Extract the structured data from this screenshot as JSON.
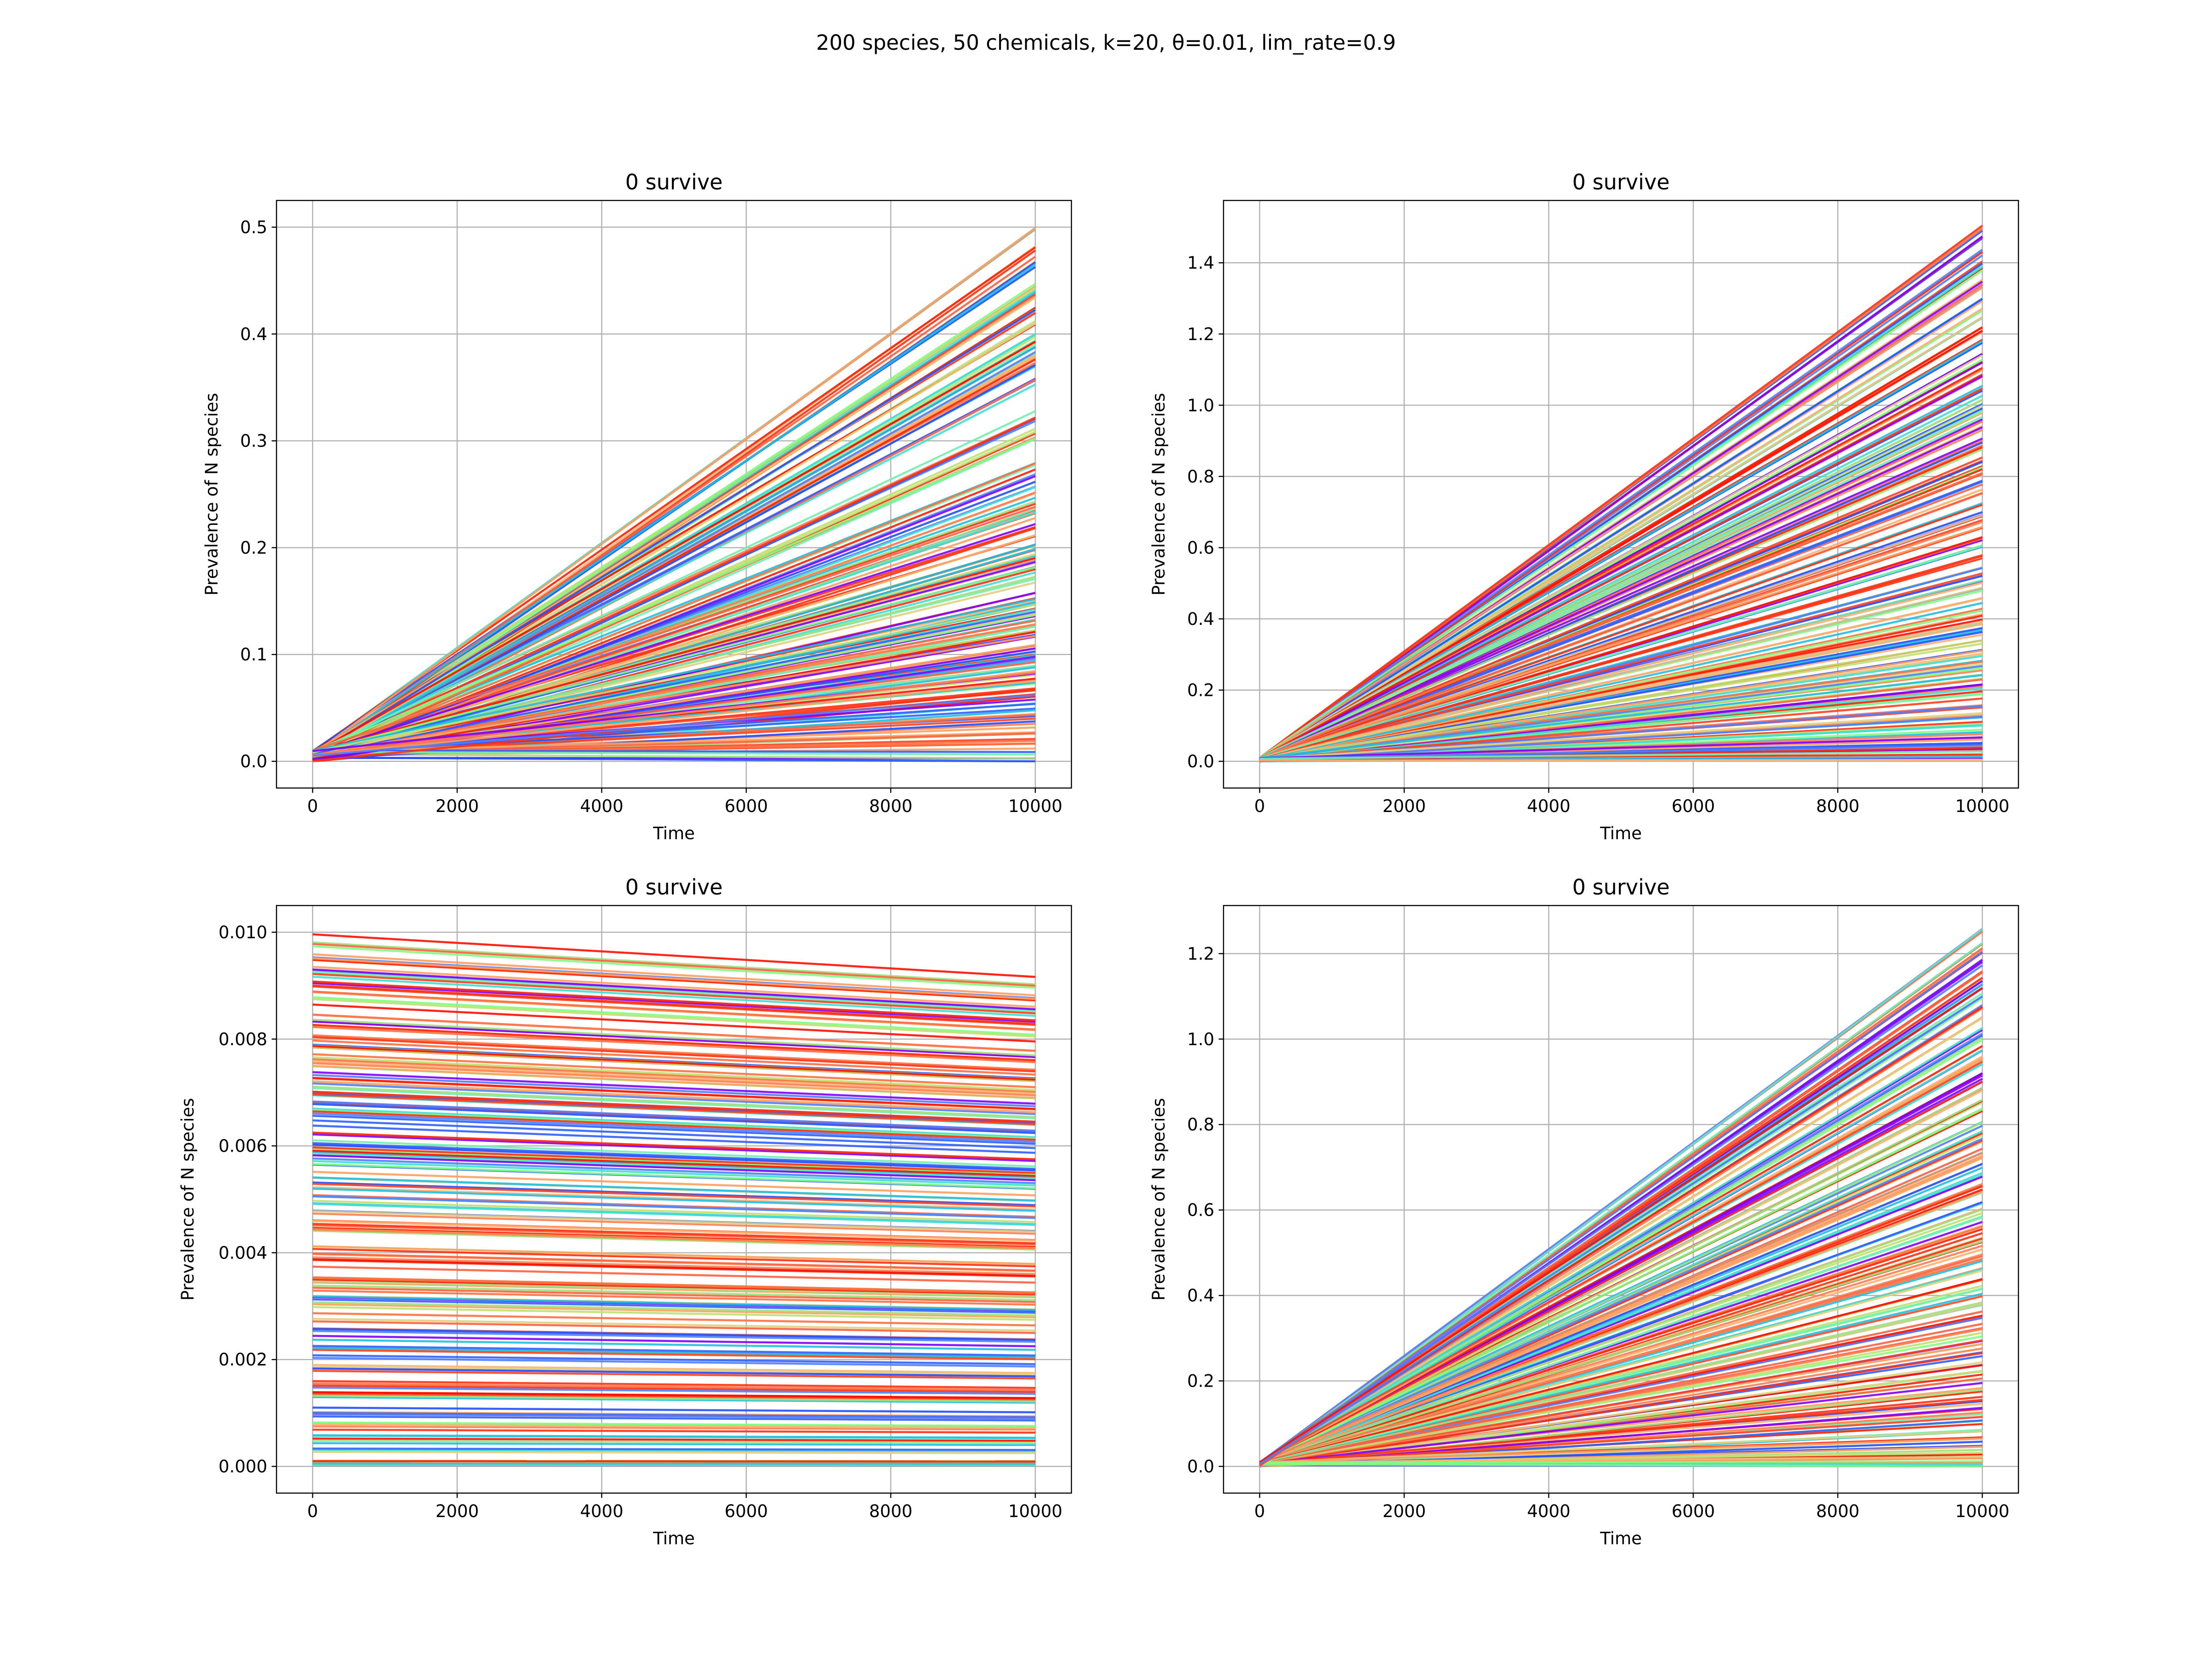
{
  "figure": {
    "suptitle": "200 species, 50 chemicals, k=20, θ=0.01, lim_rate=0.9"
  },
  "chart_data": [
    {
      "type": "line",
      "title": "0 survive",
      "xlabel": "Time",
      "ylabel": "Prevalence of N species",
      "xlim": [
        -500,
        10500
      ],
      "ylim": [
        -0.025,
        0.525
      ],
      "xticks": [
        0,
        2000,
        4000,
        6000,
        8000,
        10000
      ],
      "xtick_labels": [
        "0",
        "2000",
        "4000",
        "6000",
        "8000",
        "10000"
      ],
      "yticks": [
        0.0,
        0.1,
        0.2,
        0.3,
        0.4,
        0.5
      ],
      "ytick_labels": [
        "0.0",
        "0.1",
        "0.2",
        "0.3",
        "0.4",
        "0.5"
      ],
      "grid": true,
      "n_series": 200,
      "colormap": "rainbow",
      "series_shape": "straight lines from t=0 to t=10000",
      "start_range": [
        0.0,
        0.01
      ],
      "end_samples": [
        0.5,
        0.48,
        0.47,
        0.465,
        0.445,
        0.44,
        0.435,
        0.425,
        0.42,
        0.41,
        0.4,
        0.395,
        0.39,
        0.385,
        0.38,
        0.375,
        0.37,
        0.36,
        0.355,
        0.325,
        0.32,
        0.31,
        0.3,
        0.28,
        0.27,
        0.26,
        0.25,
        0.24,
        0.235,
        0.23,
        0.22,
        0.21,
        0.205,
        0.2,
        0.195,
        0.19,
        0.185,
        0.18,
        0.17,
        0.155,
        0.15,
        0.145,
        0.14,
        0.135,
        0.13,
        0.125,
        0.12,
        0.115,
        0.11,
        0.105,
        0.1,
        0.095,
        0.09,
        0.085,
        0.08,
        0.075,
        0.07,
        0.065,
        0.06,
        0.055,
        0.05,
        0.045,
        0.04,
        0.035,
        0.03,
        0.025,
        0.02,
        0.015,
        0.01,
        0.005,
        0.002
      ],
      "colors": [
        "#80ff80",
        "#40e0d0",
        "#ff2000",
        "#3060ff",
        "#ff4020",
        "#ffb070",
        "#a0e080",
        "#ff6040",
        "#8000ff",
        "#20c0e0",
        "#e0d080",
        "#ff3010",
        "#5080ff",
        "#70f0b0",
        "#ff8050",
        "#ffa060",
        "#2050ff",
        "#c0e070",
        "#ff1000",
        "#ff7040"
      ]
    },
    {
      "type": "line",
      "title": "0 survive",
      "xlabel": "Time",
      "ylabel": "Prevalence of N species",
      "xlim": [
        -500,
        10500
      ],
      "ylim": [
        -0.075,
        1.575
      ],
      "xticks": [
        0,
        2000,
        4000,
        6000,
        8000,
        10000
      ],
      "xtick_labels": [
        "0",
        "2000",
        "4000",
        "6000",
        "8000",
        "10000"
      ],
      "yticks": [
        0.0,
        0.2,
        0.4,
        0.6,
        0.8,
        1.0,
        1.2,
        1.4
      ],
      "ytick_labels": [
        "0.0",
        "0.2",
        "0.4",
        "0.6",
        "0.8",
        "1.0",
        "1.2",
        "1.4"
      ],
      "grid": true,
      "n_series": 200,
      "colormap": "rainbow",
      "series_shape": "straight lines from t=0 to t=10000",
      "start_range": [
        0.0,
        0.01
      ],
      "end_samples": [
        1.5,
        1.47,
        1.43,
        1.4,
        1.38,
        1.35,
        1.33,
        1.3,
        1.27,
        1.25,
        1.22,
        1.2,
        1.18,
        1.15,
        1.12,
        1.1,
        1.08,
        1.05,
        1.02,
        1.0,
        0.98,
        0.96,
        0.94,
        0.9,
        0.88,
        0.85,
        0.82,
        0.8,
        0.78,
        0.76,
        0.72,
        0.7,
        0.68,
        0.65,
        0.62,
        0.6,
        0.58,
        0.55,
        0.52,
        0.5,
        0.48,
        0.45,
        0.42,
        0.4,
        0.38,
        0.36,
        0.34,
        0.32,
        0.3,
        0.28,
        0.26,
        0.24,
        0.22,
        0.2,
        0.18,
        0.15,
        0.13,
        0.12,
        0.1,
        0.08,
        0.06,
        0.05,
        0.04,
        0.03,
        0.02,
        0.01,
        0.005
      ],
      "colors": [
        "#80ff80",
        "#40e0d0",
        "#ff2000",
        "#3060ff",
        "#ff4020",
        "#ffb070",
        "#a0e080",
        "#ff6040",
        "#8000ff",
        "#20c0e0",
        "#e0d080",
        "#ff3010",
        "#5080ff",
        "#70f0b0",
        "#ff8050",
        "#ffa060",
        "#2050ff",
        "#c0e070",
        "#ff1000",
        "#ff7040"
      ]
    },
    {
      "type": "line",
      "title": "0 survive",
      "xlabel": "Time",
      "ylabel": "Prevalence of N species",
      "xlim": [
        -500,
        10500
      ],
      "ylim": [
        -0.0005,
        0.0105
      ],
      "xticks": [
        0,
        2000,
        4000,
        6000,
        8000,
        10000
      ],
      "xtick_labels": [
        "0",
        "2000",
        "4000",
        "6000",
        "8000",
        "10000"
      ],
      "yticks": [
        0.0,
        0.002,
        0.004,
        0.006,
        0.008,
        0.01
      ],
      "ytick_labels": [
        "0.000",
        "0.002",
        "0.004",
        "0.006",
        "0.008",
        "0.010"
      ],
      "grid": true,
      "n_series": 200,
      "colormap": "rainbow",
      "series_shape": "straight lines from t=0 to t=10000, slowly decreasing (end ≈ 0.92 × start)",
      "start_range": [
        0.0,
        0.01
      ],
      "end_factor": 0.92,
      "colors": [
        "#80ff80",
        "#40e0d0",
        "#ff2000",
        "#3060ff",
        "#ff4020",
        "#ffb070",
        "#a0e080",
        "#ff6040",
        "#8000ff",
        "#20c0e0",
        "#e0d080",
        "#ff3010",
        "#5080ff",
        "#70f0b0",
        "#ff8050",
        "#ffa060",
        "#2050ff",
        "#c0e070",
        "#ff1000",
        "#ff7040"
      ]
    },
    {
      "type": "line",
      "title": "0 survive",
      "xlabel": "Time",
      "ylabel": "Prevalence of N species",
      "xlim": [
        -500,
        10500
      ],
      "ylim": [
        -0.0625,
        1.3125
      ],
      "xticks": [
        0,
        2000,
        4000,
        6000,
        8000,
        10000
      ],
      "xtick_labels": [
        "0",
        "2000",
        "4000",
        "6000",
        "8000",
        "10000"
      ],
      "yticks": [
        0.0,
        0.2,
        0.4,
        0.6,
        0.8,
        1.0,
        1.2
      ],
      "ytick_labels": [
        "0.0",
        "0.2",
        "0.4",
        "0.6",
        "0.8",
        "1.0",
        "1.2"
      ],
      "grid": true,
      "n_series": 200,
      "colormap": "rainbow",
      "series_shape": "straight lines from t=0 to t=10000",
      "start_range": [
        0.0,
        0.01
      ],
      "end_samples": [
        1.25,
        1.22,
        1.2,
        1.18,
        1.16,
        1.14,
        1.12,
        1.1,
        1.08,
        1.05,
        1.02,
        1.0,
        0.98,
        0.96,
        0.94,
        0.92,
        0.9,
        0.88,
        0.85,
        0.83,
        0.8,
        0.78,
        0.76,
        0.74,
        0.72,
        0.7,
        0.68,
        0.66,
        0.64,
        0.62,
        0.6,
        0.58,
        0.56,
        0.54,
        0.52,
        0.5,
        0.48,
        0.46,
        0.44,
        0.42,
        0.4,
        0.38,
        0.36,
        0.34,
        0.32,
        0.3,
        0.28,
        0.26,
        0.24,
        0.22,
        0.2,
        0.18,
        0.16,
        0.14,
        0.12,
        0.1,
        0.08,
        0.06,
        0.05,
        0.04,
        0.03,
        0.02,
        0.01,
        0.005
      ],
      "colors": [
        "#80ff80",
        "#40e0d0",
        "#ff2000",
        "#3060ff",
        "#ff4020",
        "#ffb070",
        "#a0e080",
        "#ff6040",
        "#8000ff",
        "#20c0e0",
        "#e0d080",
        "#ff3010",
        "#5080ff",
        "#70f0b0",
        "#ff8050",
        "#ffa060",
        "#2050ff",
        "#c0e070",
        "#ff1000",
        "#ff7040"
      ]
    }
  ]
}
